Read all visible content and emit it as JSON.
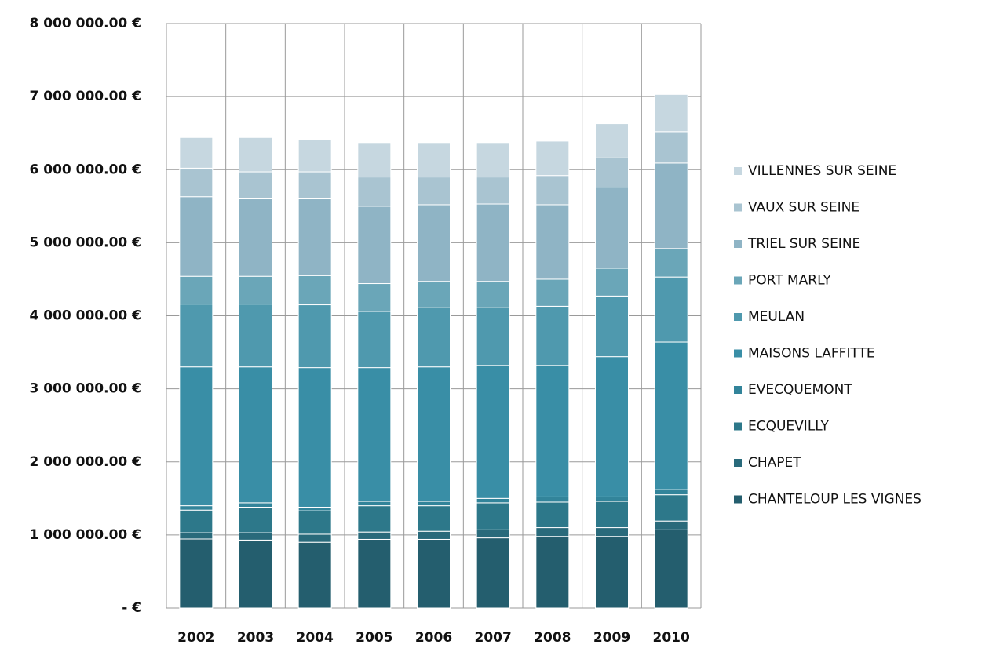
{
  "chart_data": {
    "type": "stacked_bar",
    "categories": [
      "2002",
      "2003",
      "2004",
      "2005",
      "2006",
      "2007",
      "2008",
      "2009",
      "2010"
    ],
    "series": [
      {
        "name": "CHANTELOUP LES VIGNES",
        "color": "#245e6e",
        "values": [
          945000,
          930000,
          900000,
          940000,
          940000,
          960000,
          980000,
          980000,
          1070000
        ]
      },
      {
        "name": "CHAPET",
        "color": "#296a7b",
        "values": [
          85000,
          100000,
          110000,
          100000,
          110000,
          110000,
          120000,
          120000,
          120000
        ]
      },
      {
        "name": "ECQUEVILLY",
        "color": "#2d788a",
        "values": [
          310000,
          350000,
          320000,
          360000,
          350000,
          370000,
          350000,
          360000,
          360000
        ]
      },
      {
        "name": "EVECQUEMONT",
        "color": "#32849a",
        "values": [
          60000,
          60000,
          50000,
          60000,
          60000,
          60000,
          70000,
          60000,
          70000
        ]
      },
      {
        "name": "MAISONS LAFFITTE",
        "color": "#398ea6",
        "values": [
          1900000,
          1860000,
          1910000,
          1830000,
          1840000,
          1820000,
          1800000,
          1920000,
          2020000
        ]
      },
      {
        "name": "MEULAN",
        "color": "#4f99ae",
        "values": [
          860000,
          860000,
          860000,
          770000,
          810000,
          790000,
          810000,
          830000,
          890000
        ]
      },
      {
        "name": "PORT MARLY",
        "color": "#6aa6b8",
        "values": [
          380000,
          380000,
          400000,
          380000,
          360000,
          360000,
          370000,
          380000,
          390000
        ]
      },
      {
        "name": "TRIEL SUR SEINE",
        "color": "#8fb4c5",
        "values": [
          1090000,
          1060000,
          1050000,
          1060000,
          1050000,
          1060000,
          1020000,
          1110000,
          1170000
        ]
      },
      {
        "name": "VAUX SUR SEINE",
        "color": "#a9c4d1",
        "values": [
          390000,
          370000,
          370000,
          400000,
          380000,
          370000,
          400000,
          400000,
          430000
        ]
      },
      {
        "name": "VILLENNES SUR SEINE",
        "color": "#c6d7e0",
        "values": [
          420000,
          470000,
          440000,
          470000,
          470000,
          470000,
          470000,
          470000,
          510000
        ]
      }
    ],
    "ylim": [
      0,
      8000000
    ],
    "yticks": [
      {
        "value": 0,
        "label": "-   €"
      },
      {
        "value": 1000000,
        "label": "1 000 000.00 €"
      },
      {
        "value": 2000000,
        "label": "2 000 000.00 €"
      },
      {
        "value": 3000000,
        "label": "3 000 000.00 €"
      },
      {
        "value": 4000000,
        "label": "4 000 000.00 €"
      },
      {
        "value": 5000000,
        "label": "5 000 000.00 €"
      },
      {
        "value": 6000000,
        "label": "6 000 000.00 €"
      },
      {
        "value": 7000000,
        "label": "7 000 000.00 €"
      },
      {
        "value": 8000000,
        "label": "8 000 000.00 €"
      }
    ],
    "grid": true,
    "legend": "right"
  }
}
